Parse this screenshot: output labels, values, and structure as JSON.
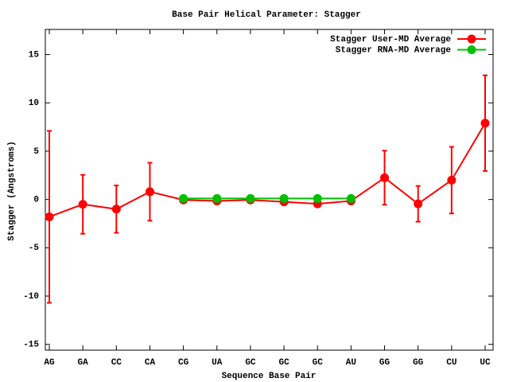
{
  "chart_data": {
    "type": "line",
    "title": "Base Pair Helical Parameter: Stagger",
    "xlabel": "Sequence Base Pair",
    "ylabel": "Stagger (Angstroms)",
    "categories": [
      "AG",
      "GA",
      "CC",
      "CA",
      "CG",
      "UA",
      "GC",
      "GC",
      "GC",
      "AU",
      "GG",
      "GG",
      "CU",
      "UC"
    ],
    "series": [
      {
        "name": "Stagger User-MD Average",
        "color": "#ff0000",
        "values": [
          -1.8,
          -0.5,
          -1.0,
          0.8,
          -0.05,
          -0.15,
          -0.05,
          -0.25,
          -0.45,
          -0.15,
          2.25,
          -0.45,
          2.0,
          7.9
        ],
        "errors": [
          8.9,
          3.05,
          2.45,
          3.0,
          0.25,
          0.25,
          0.2,
          0.2,
          0.2,
          0.25,
          2.8,
          1.85,
          3.45,
          4.95
        ]
      },
      {
        "name": "Stagger RNA-MD Average",
        "color": "#00c000",
        "values": [
          null,
          null,
          null,
          null,
          0.1,
          0.1,
          0.1,
          0.1,
          0.1,
          0.1,
          null,
          null,
          null,
          null
        ]
      }
    ],
    "ylim": [
      -15.6,
      17.6
    ],
    "yticks": [
      -15,
      -10,
      -5,
      0,
      5,
      10,
      15
    ],
    "legend": "top right"
  }
}
